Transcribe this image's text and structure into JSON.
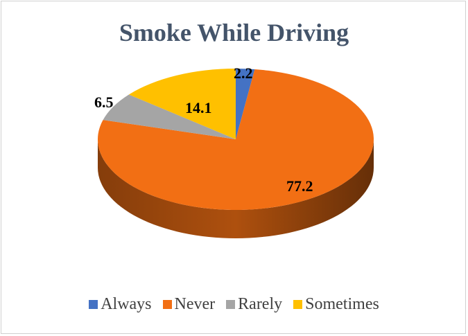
{
  "chart_data": {
    "type": "pie",
    "title": "Smoke While Driving",
    "categories": [
      "Always",
      "Never",
      "Rarely",
      "Sometimes"
    ],
    "values": [
      2.2,
      77.2,
      6.5,
      14.1
    ],
    "labels": [
      "2.2",
      "77.2",
      "6.5",
      "14.1"
    ],
    "colors": [
      "#4472c4",
      "#f26f14",
      "#a5a5a5",
      "#ffc000"
    ],
    "legend_position": "bottom"
  }
}
